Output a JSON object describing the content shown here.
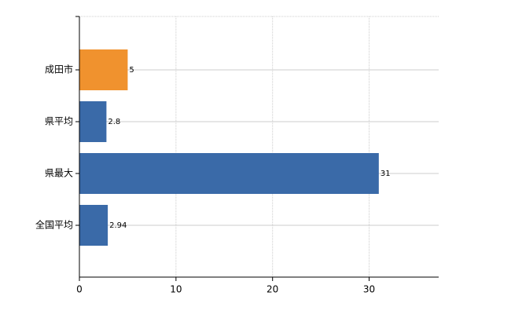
{
  "chart_data": {
    "type": "barh",
    "categories": [
      "成田市",
      "県平均",
      "県最大",
      "全国平均"
    ],
    "values": [
      5,
      2.8,
      31,
      2.94
    ],
    "colors": [
      "#f0922e",
      "#3a6aa8",
      "#3a6aa8",
      "#3a6aa8"
    ],
    "xlim": [
      0,
      37.2
    ],
    "xticks": [
      0,
      10,
      20,
      30
    ],
    "grid": true
  }
}
